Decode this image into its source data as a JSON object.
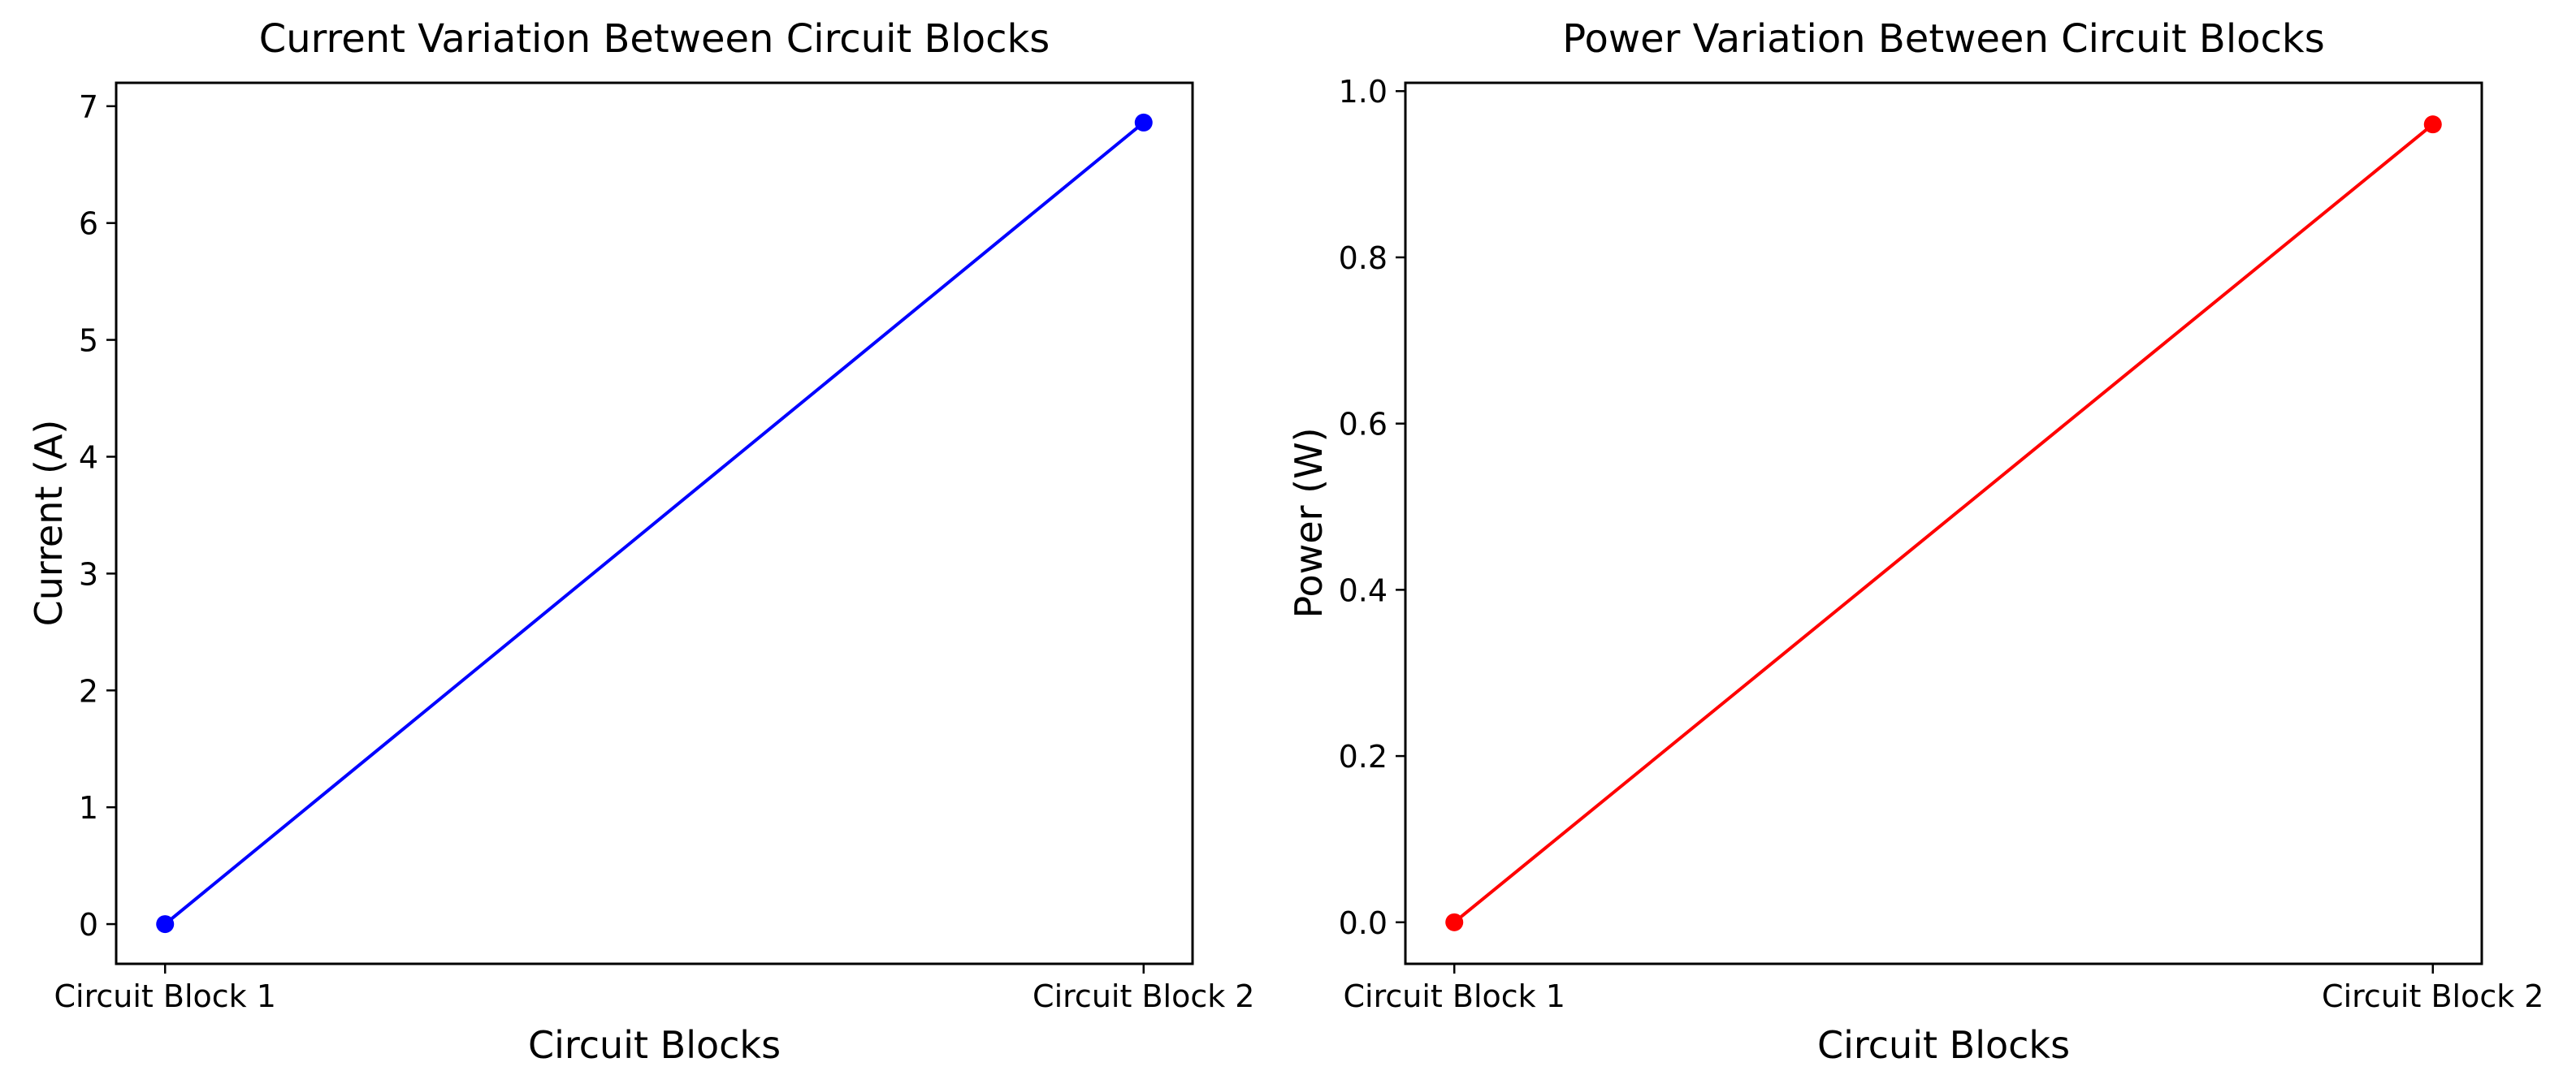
{
  "page": {
    "background_color": "#ffffff",
    "text_color": "#000000",
    "axis_color": "#000000"
  },
  "chart_data": [
    {
      "type": "line",
      "title": "Current Variation Between Circuit Blocks",
      "xlabel": "Circuit Blocks",
      "ylabel": "Current (A)",
      "categories": [
        "Circuit Block 1",
        "Circuit Block 2"
      ],
      "values": [
        0.0,
        6.86
      ],
      "line_color": "#0000ff",
      "marker": "circle",
      "ylim": [
        -0.34,
        7.2
      ],
      "yticks": [
        0,
        1,
        2,
        3,
        4,
        5,
        6,
        7
      ],
      "ytick_labels": [
        "0",
        "1",
        "2",
        "3",
        "4",
        "5",
        "6",
        "7"
      ],
      "x_margin": 0.05,
      "grid": false,
      "legend": "none"
    },
    {
      "type": "line",
      "title": "Power Variation Between Circuit Blocks",
      "xlabel": "Circuit Blocks",
      "ylabel": "Power (W)",
      "categories": [
        "Circuit Block 1",
        "Circuit Block 2"
      ],
      "values": [
        0.0,
        0.96
      ],
      "line_color": "#ff0000",
      "marker": "circle",
      "ylim": [
        -0.05,
        1.01
      ],
      "yticks": [
        0.0,
        0.2,
        0.4,
        0.6,
        0.8,
        1.0
      ],
      "ytick_labels": [
        "0.0",
        "0.2",
        "0.4",
        "0.6",
        "0.8",
        "1.0"
      ],
      "x_margin": 0.05,
      "grid": false,
      "legend": "none"
    }
  ]
}
